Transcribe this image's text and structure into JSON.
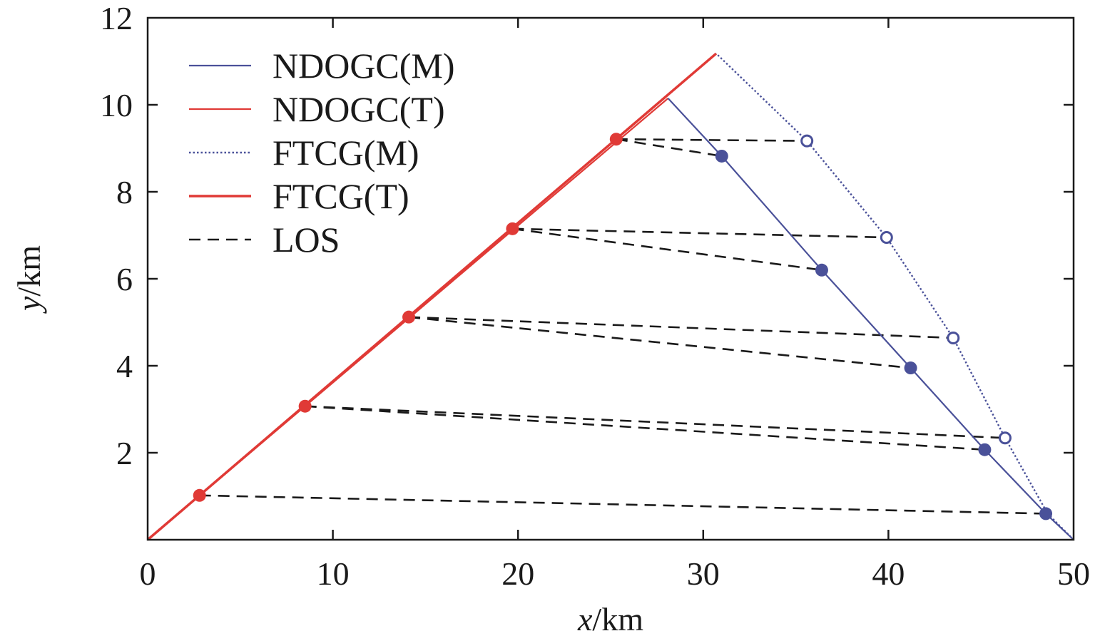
{
  "chart_data": {
    "type": "line",
    "xlabel": {
      "var": "x",
      "unit": "/km"
    },
    "ylabel": {
      "var": "y",
      "unit": "/km"
    },
    "xlim": [
      0,
      50
    ],
    "ylim": [
      0,
      12
    ],
    "xticks": [
      {
        "v": 0,
        "label": "0"
      },
      {
        "v": 10,
        "label": "10"
      },
      {
        "v": 20,
        "label": "20"
      },
      {
        "v": 30,
        "label": "30"
      },
      {
        "v": 40,
        "label": "40"
      },
      {
        "v": 50,
        "label": "50"
      }
    ],
    "yticks": [
      {
        "v": 2,
        "label": "2"
      },
      {
        "v": 4,
        "label": "4"
      },
      {
        "v": 6,
        "label": "6"
      },
      {
        "v": 8,
        "label": "8"
      },
      {
        "v": 10,
        "label": "10"
      },
      {
        "v": 12,
        "label": "12"
      }
    ],
    "colors": {
      "blue": "#4a5199",
      "red": "#e03a36",
      "black": "#1a1a1a"
    },
    "series": [
      {
        "name": "NDOGC(M)",
        "style": "thin-blue",
        "x": [
          50,
          48.5,
          45.2,
          41.2,
          36.4,
          31.0,
          28.1
        ],
        "y": [
          0,
          0.6,
          2.07,
          3.95,
          6.2,
          8.82,
          10.15
        ]
      },
      {
        "name": "NDOGC(T)",
        "style": "thin-red",
        "x": [
          0,
          28.1
        ],
        "y": [
          0,
          10.15
        ]
      },
      {
        "name": "FTCG(M)",
        "style": "dotted-blue",
        "x": [
          50,
          48.6,
          46.3,
          43.5,
          39.9,
          35.6,
          30.7
        ],
        "y": [
          0,
          0.6,
          2.34,
          4.64,
          6.95,
          9.17,
          11.18
        ]
      },
      {
        "name": "FTCG(T)",
        "style": "thick-red",
        "x": [
          0,
          30.7
        ],
        "y": [
          0,
          11.18
        ]
      },
      {
        "name": "LOS",
        "style": "dashed-black",
        "x": [],
        "y": []
      }
    ],
    "target_points": [
      {
        "x": 2.8,
        "y": 1.02
      },
      {
        "x": 8.5,
        "y": 3.07
      },
      {
        "x": 14.1,
        "y": 5.12
      },
      {
        "x": 19.7,
        "y": 7.15
      },
      {
        "x": 25.3,
        "y": 9.21
      }
    ],
    "ndogc_missile_points": [
      {
        "x": 48.5,
        "y": 0.6
      },
      {
        "x": 45.2,
        "y": 2.07
      },
      {
        "x": 41.2,
        "y": 3.95
      },
      {
        "x": 36.4,
        "y": 6.2
      },
      {
        "x": 31.0,
        "y": 8.82
      }
    ],
    "ftcg_missile_points": [
      {
        "x": 46.3,
        "y": 2.34
      },
      {
        "x": 43.5,
        "y": 4.64
      },
      {
        "x": 39.9,
        "y": 6.95
      },
      {
        "x": 35.6,
        "y": 9.17
      }
    ],
    "los_lines": [
      {
        "from": [
          2.8,
          1.02
        ],
        "to": [
          48.5,
          0.6
        ]
      },
      {
        "from": [
          8.5,
          3.07
        ],
        "to": [
          45.2,
          2.07
        ]
      },
      {
        "from": [
          8.5,
          3.07
        ],
        "to": [
          46.3,
          2.34
        ]
      },
      {
        "from": [
          14.1,
          5.12
        ],
        "to": [
          41.2,
          3.95
        ]
      },
      {
        "from": [
          14.1,
          5.12
        ],
        "to": [
          43.5,
          4.64
        ]
      },
      {
        "from": [
          19.7,
          7.15
        ],
        "to": [
          36.4,
          6.2
        ]
      },
      {
        "from": [
          19.7,
          7.15
        ],
        "to": [
          39.9,
          6.95
        ]
      },
      {
        "from": [
          25.3,
          9.21
        ],
        "to": [
          31.0,
          8.82
        ]
      },
      {
        "from": [
          25.3,
          9.21
        ],
        "to": [
          35.6,
          9.17
        ]
      }
    ],
    "legend": {
      "position": "top-left",
      "entries": [
        {
          "label": "NDOGC(M)",
          "style": "thin-blue"
        },
        {
          "label": "NDOGC(T)",
          "style": "thin-red"
        },
        {
          "label": "FTCG(M)",
          "style": "dotted-blue"
        },
        {
          "label": "FTCG(T)",
          "style": "thick-red"
        },
        {
          "label": "LOS",
          "style": "dashed-black"
        }
      ]
    }
  }
}
